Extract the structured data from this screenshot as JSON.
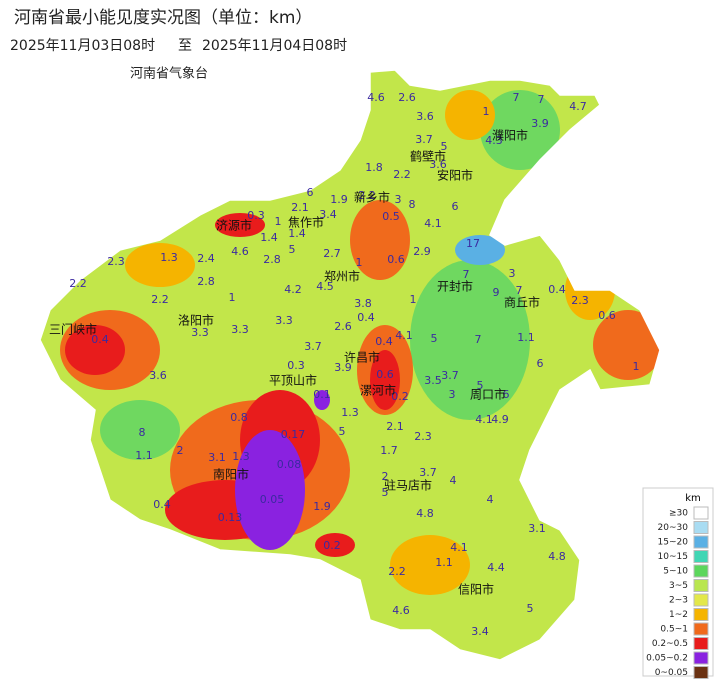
{
  "header": {
    "title": "河南省最小能见度实况图（单位：km）",
    "start_time": "2025年11月03日08时",
    "to": "至",
    "end_time": "2025年11月04日08时",
    "agency": "河南省气象台"
  },
  "cities": [
    "济源市",
    "焦作市",
    "新乡市",
    "鹤壁市",
    "安阳市",
    "濮阳市",
    "郑州市",
    "开封市",
    "商丘市",
    "三门峡市",
    "洛阳市",
    "许昌市",
    "平顶山市",
    "漯河市",
    "周口市",
    "南阳市",
    "驻马店市",
    "信阳市"
  ],
  "stations": [
    4.6,
    2.6,
    3.6,
    1,
    7,
    7,
    4.7,
    3.9,
    4.3,
    3.7,
    5,
    1.8,
    2.2,
    3.6,
    6,
    1.9,
    2.2,
    3,
    8,
    6,
    2.1,
    3.4,
    0.5,
    4.1,
    0.3,
    1,
    1.4,
    1.4,
    4.6,
    2.8,
    5,
    2.7,
    1,
    0.6,
    2.9,
    17,
    7,
    3,
    9,
    7,
    0.4,
    2.3,
    0.6,
    2.3,
    1.3,
    2.4,
    2.8,
    2.2,
    2.2,
    1,
    4.2,
    4.5,
    3.8,
    1,
    0.4,
    2.6,
    4.1,
    0.4,
    5,
    7,
    1.1,
    0.4,
    3.3,
    3.3,
    3.3,
    3.7,
    0.3,
    3.9,
    0.6,
    3.5,
    3.7,
    5,
    6,
    1,
    3.6,
    0.1,
    0.2,
    3,
    6,
    0.8,
    1.3,
    5,
    2.1,
    2.3,
    4.1,
    4.9,
    8,
    0.17,
    1.1,
    2,
    3.1,
    1.3,
    0.08,
    1.7,
    3.7,
    2,
    4,
    5,
    0.05,
    0.4,
    4,
    0.13,
    1.9,
    4.8,
    3.1,
    0.2,
    4.1,
    4.8,
    2.2,
    1.1,
    4.4,
    4.6,
    5,
    3.4
  ],
  "legend": {
    "title": "km",
    "items": [
      {
        "label": "≥30",
        "color": "#ffffff"
      },
      {
        "label": "20~30",
        "color": "#a9dcf2"
      },
      {
        "label": "15~20",
        "color": "#5ab0e4"
      },
      {
        "label": "10~15",
        "color": "#40d6b4"
      },
      {
        "label": "5~10",
        "color": "#5cd65c"
      },
      {
        "label": "3~5",
        "color": "#b9e650"
      },
      {
        "label": "2~3",
        "color": "#e3e84a"
      },
      {
        "label": "1~2",
        "color": "#f5b400"
      },
      {
        "label": "0.5~1",
        "color": "#f06a1c"
      },
      {
        "label": "0.2~0.5",
        "color": "#e81c1c"
      },
      {
        "label": "0.05~0.2",
        "color": "#8a22e0"
      },
      {
        "label": "0~0.05",
        "color": "#6b3212"
      }
    ]
  }
}
